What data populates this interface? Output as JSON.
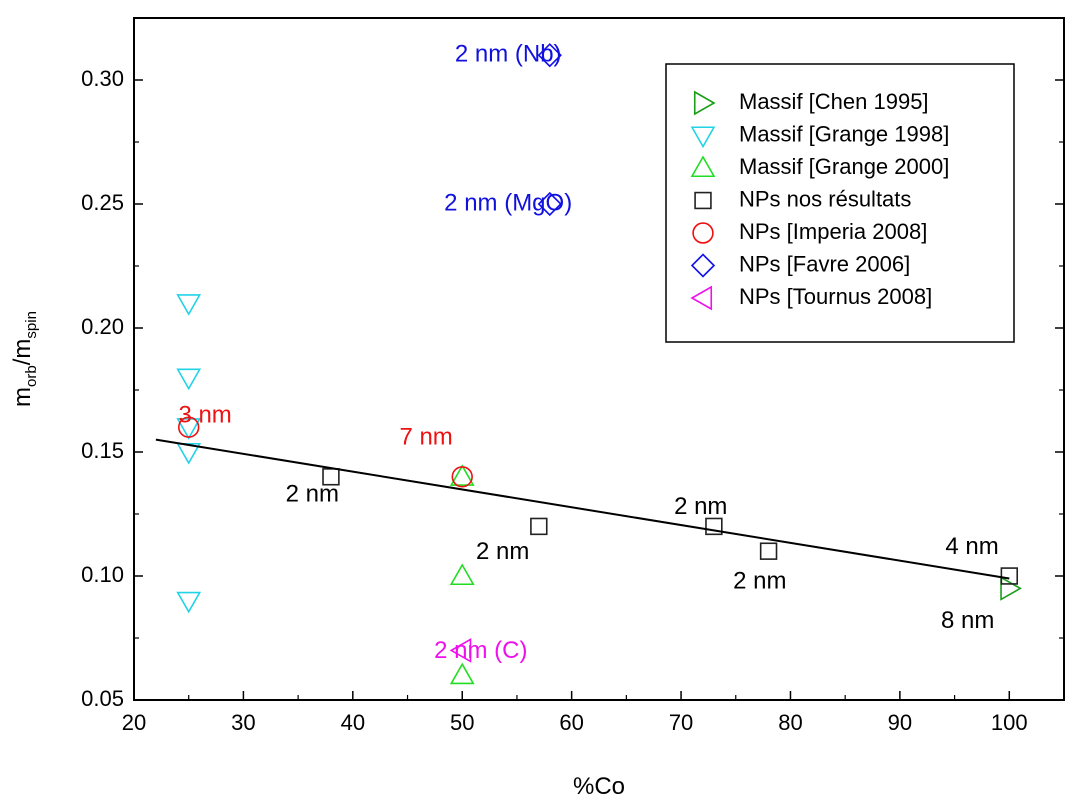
{
  "chart_data": {
    "type": "scatter",
    "xlabel": "%Co",
    "ylabel": {
      "main": "m",
      "sub1": "orb",
      "sep": "/m",
      "sub2": "spin"
    },
    "xlim": [
      20,
      105
    ],
    "ylim": [
      0.05,
      0.325
    ],
    "xticks": [
      20,
      30,
      40,
      50,
      60,
      70,
      80,
      90,
      100
    ],
    "yticks": [
      0.05,
      0.1,
      0.15,
      0.2,
      0.25,
      0.3
    ],
    "ytick_labels": [
      "0.05",
      "0.10",
      "0.15",
      "0.20",
      "0.25",
      "0.30"
    ],
    "grid": false,
    "legend_position": "top-right",
    "series": [
      {
        "name": "Massif [Chen 1995]",
        "marker": "triangle-right",
        "color": "#1a9e1a",
        "points": [
          {
            "x": 100,
            "y": 0.095
          }
        ]
      },
      {
        "name": "Massif [Grange 1998]",
        "marker": "triangle-down",
        "color": "#22d3e6",
        "points": [
          {
            "x": 25,
            "y": 0.21
          },
          {
            "x": 25,
            "y": 0.18
          },
          {
            "x": 25,
            "y": 0.16
          },
          {
            "x": 25,
            "y": 0.15
          },
          {
            "x": 25,
            "y": 0.09
          }
        ]
      },
      {
        "name": "Massif [Grange 2000]",
        "marker": "triangle-up",
        "color": "#22dd22",
        "points": [
          {
            "x": 50,
            "y": 0.14
          },
          {
            "x": 50,
            "y": 0.1
          },
          {
            "x": 50,
            "y": 0.06
          }
        ]
      },
      {
        "name": "NPs nos résultats",
        "marker": "square",
        "color": "#222222",
        "points": [
          {
            "x": 38,
            "y": 0.14
          },
          {
            "x": 57,
            "y": 0.12
          },
          {
            "x": 73,
            "y": 0.12
          },
          {
            "x": 78,
            "y": 0.11
          },
          {
            "x": 100,
            "y": 0.1
          }
        ]
      },
      {
        "name": "NPs [Imperia 2008]",
        "marker": "circle",
        "color": "#ee1111",
        "points": [
          {
            "x": 25,
            "y": 0.16
          },
          {
            "x": 50,
            "y": 0.14
          }
        ]
      },
      {
        "name": "NPs [Favre 2006]",
        "marker": "diamond",
        "color": "#1111ee",
        "points": [
          {
            "x": 58,
            "y": 0.31
          },
          {
            "x": 58,
            "y": 0.25
          }
        ]
      },
      {
        "name": "NPs [Tournus 2008]",
        "marker": "triangle-left",
        "color": "#ee11ee",
        "points": [
          {
            "x": 50,
            "y": 0.07
          }
        ]
      }
    ],
    "fit_line": {
      "x": [
        22,
        100
      ],
      "y": [
        0.155,
        0.099
      ],
      "color": "#000000"
    },
    "annotations": [
      {
        "text": "2 nm (Nb)",
        "color": "#1111dd",
        "x": 54.2,
        "y": 0.31
      },
      {
        "text": "2 nm (MgO)",
        "color": "#1111dd",
        "x": 54.2,
        "y": 0.25
      },
      {
        "text": "3 nm",
        "color": "#ee1111",
        "x": 26.5,
        "y": 0.1645
      },
      {
        "text": "7 nm",
        "color": "#ee1111",
        "x": 46.7,
        "y": 0.1555
      },
      {
        "text": "2 nm",
        "color": "#000000",
        "x": 36.3,
        "y": 0.1325
      },
      {
        "text": "2 nm",
        "color": "#000000",
        "x": 53.7,
        "y": 0.1095
      },
      {
        "text": "2 nm",
        "color": "#000000",
        "x": 71.8,
        "y": 0.1275
      },
      {
        "text": "2 nm",
        "color": "#000000",
        "x": 77.2,
        "y": 0.0975
      },
      {
        "text": "4 nm",
        "color": "#000000",
        "x": 96.6,
        "y": 0.1115
      },
      {
        "text": "8 nm",
        "color": "#000000",
        "x": 96.2,
        "y": 0.0815
      },
      {
        "text": "2 nm (C)",
        "color": "#ee11ee",
        "x": 51.7,
        "y": 0.0695
      }
    ]
  }
}
